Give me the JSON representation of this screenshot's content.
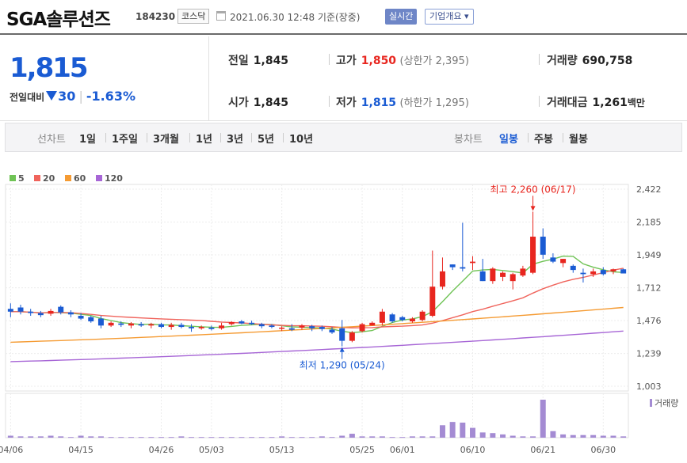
{
  "header": {
    "stock_name": "SGA솔루션즈",
    "stock_code": "184230",
    "market": "코스닥",
    "timestamp": "2021.06.30 12:48  기준(장중)",
    "realtime_label": "실시간",
    "company_label": "기업개요 ▾"
  },
  "quote": {
    "current_price": "1,815",
    "change_label": "전일대비",
    "change_value": "30",
    "change_pct": "-1.63%",
    "prev_close_label": "전일",
    "prev_close": "1,845",
    "high_label": "고가",
    "high": "1,850",
    "upper_limit": "(상한가 2,395)",
    "volume_label": "거래량",
    "volume": "690,758",
    "open_label": "시가",
    "open": "1,845",
    "low_label": "저가",
    "low": "1,815",
    "lower_limit": "(하한가 1,295)",
    "amount_label": "거래대금",
    "amount": "1,261",
    "amount_unit": "백만"
  },
  "tabs": {
    "line_label": "선차트",
    "periods": [
      "1일",
      "1주일",
      "3개월",
      "1년",
      "3년",
      "5년",
      "10년"
    ],
    "candle_label": "봉차트",
    "candles": [
      "일봉",
      "주봉",
      "월봉"
    ],
    "active_candle": "일봉"
  },
  "chart_data": {
    "type": "candlestick",
    "colors": {
      "up": "#e8261f",
      "down": "#1a5bd3",
      "ma5": "#6fc355",
      "ma20": "#f0645c",
      "ma60": "#f59b33",
      "ma120": "#a766d6",
      "volume": "#a48bd3"
    },
    "legend": [
      {
        "name": "5",
        "color": "#6fc355"
      },
      {
        "name": "20",
        "color": "#f0645c"
      },
      {
        "name": "60",
        "color": "#f59b33"
      },
      {
        "name": "120",
        "color": "#a766d6"
      }
    ],
    "y_ticks": [
      "2,422",
      "2,185",
      "1,949",
      "1,712",
      "1,476",
      "1,239",
      "1,003"
    ],
    "ylim": [
      1003,
      2422
    ],
    "x_ticks": [
      "04/06",
      "04/15",
      "04/26",
      "05/03",
      "05/13",
      "05/25",
      "06/01",
      "06/10",
      "06/21",
      "06/30"
    ],
    "x_tick_index": [
      0,
      7,
      15,
      20,
      27,
      35,
      39,
      46,
      53,
      59
    ],
    "annotation_high": "최고 2,260 (06/17)",
    "annotation_low": "최저 1,290 (05/24)",
    "volume_label": "거래량",
    "candles": [
      {
        "o": 1560,
        "h": 1600,
        "l": 1500,
        "c": 1540
      },
      {
        "o": 1570,
        "h": 1590,
        "l": 1520,
        "c": 1540
      },
      {
        "o": 1540,
        "h": 1560,
        "l": 1510,
        "c": 1530
      },
      {
        "o": 1530,
        "h": 1545,
        "l": 1500,
        "c": 1515
      },
      {
        "o": 1525,
        "h": 1560,
        "l": 1510,
        "c": 1545
      },
      {
        "o": 1575,
        "h": 1585,
        "l": 1520,
        "c": 1535
      },
      {
        "o": 1535,
        "h": 1550,
        "l": 1500,
        "c": 1520
      },
      {
        "o": 1510,
        "h": 1530,
        "l": 1480,
        "c": 1490
      },
      {
        "o": 1500,
        "h": 1510,
        "l": 1460,
        "c": 1470
      },
      {
        "o": 1490,
        "h": 1510,
        "l": 1420,
        "c": 1440
      },
      {
        "o": 1440,
        "h": 1470,
        "l": 1430,
        "c": 1460
      },
      {
        "o": 1455,
        "h": 1470,
        "l": 1430,
        "c": 1445
      },
      {
        "o": 1440,
        "h": 1465,
        "l": 1420,
        "c": 1455
      },
      {
        "o": 1450,
        "h": 1465,
        "l": 1430,
        "c": 1440
      },
      {
        "o": 1440,
        "h": 1460,
        "l": 1420,
        "c": 1450
      },
      {
        "o": 1450,
        "h": 1460,
        "l": 1420,
        "c": 1430
      },
      {
        "o": 1430,
        "h": 1460,
        "l": 1410,
        "c": 1445
      },
      {
        "o": 1445,
        "h": 1460,
        "l": 1420,
        "c": 1430
      },
      {
        "o": 1430,
        "h": 1450,
        "l": 1395,
        "c": 1420
      },
      {
        "o": 1420,
        "h": 1440,
        "l": 1410,
        "c": 1430
      },
      {
        "o": 1425,
        "h": 1440,
        "l": 1405,
        "c": 1415
      },
      {
        "o": 1420,
        "h": 1460,
        "l": 1410,
        "c": 1440
      },
      {
        "o": 1450,
        "h": 1470,
        "l": 1440,
        "c": 1465
      },
      {
        "o": 1470,
        "h": 1480,
        "l": 1450,
        "c": 1455
      },
      {
        "o": 1460,
        "h": 1475,
        "l": 1445,
        "c": 1450
      },
      {
        "o": 1450,
        "h": 1460,
        "l": 1420,
        "c": 1435
      },
      {
        "o": 1440,
        "h": 1450,
        "l": 1420,
        "c": 1430
      },
      {
        "o": 1420,
        "h": 1435,
        "l": 1400,
        "c": 1425
      },
      {
        "o": 1420,
        "h": 1450,
        "l": 1400,
        "c": 1410
      },
      {
        "o": 1425,
        "h": 1450,
        "l": 1410,
        "c": 1440
      },
      {
        "o": 1435,
        "h": 1445,
        "l": 1400,
        "c": 1420
      },
      {
        "o": 1430,
        "h": 1440,
        "l": 1400,
        "c": 1415
      },
      {
        "o": 1410,
        "h": 1430,
        "l": 1380,
        "c": 1390
      },
      {
        "o": 1420,
        "h": 1480,
        "l": 1290,
        "c": 1330
      },
      {
        "o": 1330,
        "h": 1400,
        "l": 1320,
        "c": 1390
      },
      {
        "o": 1400,
        "h": 1460,
        "l": 1390,
        "c": 1450
      },
      {
        "o": 1440,
        "h": 1470,
        "l": 1440,
        "c": 1460
      },
      {
        "o": 1460,
        "h": 1560,
        "l": 1440,
        "c": 1540
      },
      {
        "o": 1520,
        "h": 1530,
        "l": 1460,
        "c": 1470
      },
      {
        "o": 1500,
        "h": 1510,
        "l": 1470,
        "c": 1480
      },
      {
        "o": 1470,
        "h": 1500,
        "l": 1460,
        "c": 1490
      },
      {
        "o": 1480,
        "h": 1550,
        "l": 1470,
        "c": 1540
      },
      {
        "o": 1510,
        "h": 1980,
        "l": 1500,
        "c": 1720
      },
      {
        "o": 1720,
        "h": 1930,
        "l": 1700,
        "c": 1830
      },
      {
        "o": 1880,
        "h": 1880,
        "l": 1840,
        "c": 1860
      },
      {
        "o": 1860,
        "h": 2180,
        "l": 1830,
        "c": 1850
      },
      {
        "o": 1890,
        "h": 1940,
        "l": 1840,
        "c": 1900
      },
      {
        "o": 1830,
        "h": 1920,
        "l": 1760,
        "c": 1760
      },
      {
        "o": 1760,
        "h": 1860,
        "l": 1740,
        "c": 1850
      },
      {
        "o": 1790,
        "h": 1830,
        "l": 1760,
        "c": 1820
      },
      {
        "o": 1760,
        "h": 1820,
        "l": 1700,
        "c": 1810
      },
      {
        "o": 1800,
        "h": 1870,
        "l": 1790,
        "c": 1850
      },
      {
        "o": 1820,
        "h": 2260,
        "l": 1810,
        "c": 2080
      },
      {
        "o": 2080,
        "h": 2140,
        "l": 1920,
        "c": 1950
      },
      {
        "o": 1930,
        "h": 1960,
        "l": 1890,
        "c": 1900
      },
      {
        "o": 1890,
        "h": 1920,
        "l": 1860,
        "c": 1920
      },
      {
        "o": 1870,
        "h": 1880,
        "l": 1820,
        "c": 1840
      },
      {
        "o": 1820,
        "h": 1850,
        "l": 1750,
        "c": 1810
      },
      {
        "o": 1810,
        "h": 1850,
        "l": 1790,
        "c": 1830
      },
      {
        "o": 1840,
        "h": 1860,
        "l": 1800,
        "c": 1810
      },
      {
        "o": 1830,
        "h": 1850,
        "l": 1810,
        "c": 1845
      },
      {
        "o": 1845,
        "h": 1850,
        "l": 1815,
        "c": 1815
      }
    ],
    "volumes": [
      3,
      2,
      2,
      2,
      3,
      2,
      1,
      3,
      2,
      2,
      1,
      1,
      1,
      1,
      1,
      1,
      1,
      2,
      1,
      1,
      1,
      1,
      1,
      1,
      1,
      1,
      1,
      2,
      1,
      1,
      1,
      2,
      1,
      3,
      6,
      2,
      2,
      2,
      1,
      1,
      2,
      2,
      2,
      19,
      24,
      23,
      15,
      8,
      7,
      5,
      3,
      2,
      2,
      58,
      10,
      5,
      4,
      4,
      4,
      3,
      3,
      2
    ]
  }
}
